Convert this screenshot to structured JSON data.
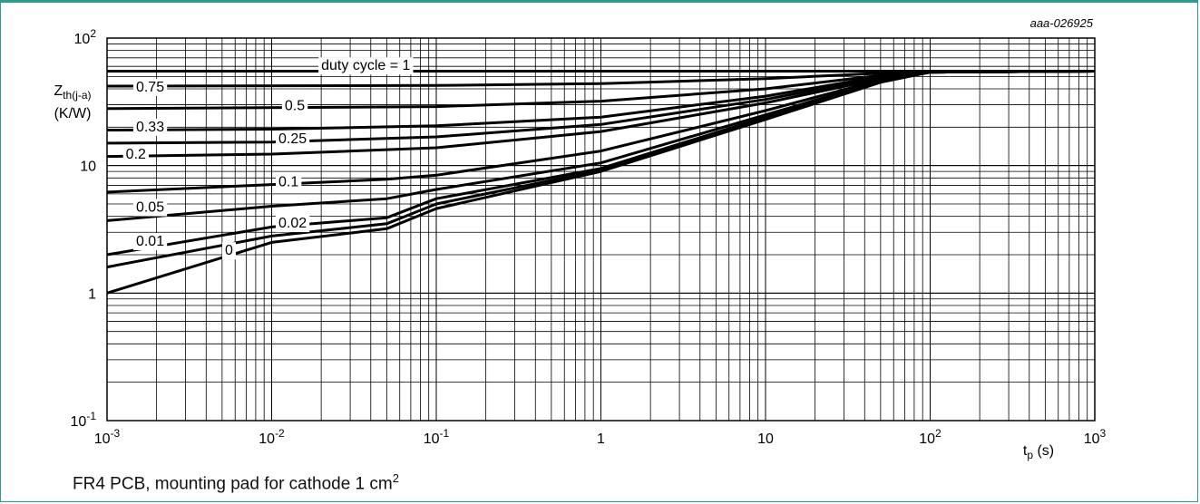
{
  "figure_id": "aaa-026925",
  "caption": {
    "text": "FR4 PCB, mounting pad for cathode 1 cm",
    "superscript": "2"
  },
  "chart_data": {
    "type": "line",
    "title": "",
    "x_scale": "log",
    "y_scale": "log",
    "xlim": [
      0.001,
      1000
    ],
    "ylim": [
      0.1,
      100
    ],
    "grid": true,
    "xlabel": {
      "base": "t",
      "sub": "p",
      "unit": " (s)"
    },
    "ylabel": {
      "base": "Z",
      "sub": "th(j-a)",
      "unit": "(K/W)"
    },
    "x_ticks": [
      {
        "value": 0.001,
        "base": "10",
        "exp": "-3"
      },
      {
        "value": 0.01,
        "base": "10",
        "exp": "-2"
      },
      {
        "value": 0.1,
        "base": "10",
        "exp": "-1"
      },
      {
        "value": 1,
        "base": "1",
        "exp": ""
      },
      {
        "value": 10,
        "base": "10",
        "exp": ""
      },
      {
        "value": 100,
        "base": "10",
        "exp": "2"
      },
      {
        "value": 1000,
        "base": "10",
        "exp": "3"
      }
    ],
    "y_ticks": [
      {
        "value": 0.1,
        "base": "10",
        "exp": "-1"
      },
      {
        "value": 1,
        "base": "1",
        "exp": ""
      },
      {
        "value": 10,
        "base": "10",
        "exp": ""
      },
      {
        "value": 100,
        "base": "10",
        "exp": "2"
      }
    ],
    "series": [
      {
        "name": "duty cycle = 1",
        "points": [
          [
            0.001,
            55
          ],
          [
            1000,
            55
          ]
        ]
      },
      {
        "name": "0.75",
        "points": [
          [
            0.001,
            42
          ],
          [
            0.1,
            42.5
          ],
          [
            1,
            44
          ],
          [
            10,
            48
          ],
          [
            50,
            53
          ],
          [
            100,
            54.5
          ],
          [
            1000,
            55
          ]
        ]
      },
      {
        "name": "0.5",
        "points": [
          [
            0.001,
            28
          ],
          [
            0.1,
            29
          ],
          [
            1,
            32
          ],
          [
            10,
            40
          ],
          [
            50,
            51
          ],
          [
            100,
            54
          ],
          [
            1000,
            55
          ]
        ]
      },
      {
        "name": "0.33",
        "points": [
          [
            0.001,
            19
          ],
          [
            0.01,
            19.3
          ],
          [
            0.1,
            20.5
          ],
          [
            1,
            24
          ],
          [
            10,
            35
          ],
          [
            50,
            50
          ],
          [
            100,
            54
          ],
          [
            1000,
            55
          ]
        ]
      },
      {
        "name": "0.25",
        "points": [
          [
            0.001,
            15
          ],
          [
            0.01,
            15.3
          ],
          [
            0.1,
            16.8
          ],
          [
            1,
            21
          ],
          [
            10,
            33
          ],
          [
            50,
            49
          ],
          [
            100,
            54
          ],
          [
            1000,
            55
          ]
        ]
      },
      {
        "name": "0.2",
        "points": [
          [
            0.001,
            11.8
          ],
          [
            0.01,
            12.3
          ],
          [
            0.1,
            13.8
          ],
          [
            1,
            18.5
          ],
          [
            10,
            31
          ],
          [
            50,
            48
          ],
          [
            100,
            54
          ],
          [
            1000,
            55
          ]
        ]
      },
      {
        "name": "0.1",
        "points": [
          [
            0.001,
            6.2
          ],
          [
            0.01,
            7.1
          ],
          [
            0.05,
            7.8
          ],
          [
            0.1,
            8.4
          ],
          [
            1,
            13
          ],
          [
            10,
            27
          ],
          [
            50,
            47
          ],
          [
            100,
            54
          ],
          [
            1000,
            55
          ]
        ]
      },
      {
        "name": "0.05",
        "points": [
          [
            0.001,
            3.7
          ],
          [
            0.01,
            4.8
          ],
          [
            0.05,
            5.5
          ],
          [
            0.1,
            6.5
          ],
          [
            1,
            10.5
          ],
          [
            10,
            25
          ],
          [
            50,
            46
          ],
          [
            100,
            54
          ],
          [
            1000,
            55
          ]
        ]
      },
      {
        "name": "0.02",
        "points": [
          [
            0.001,
            2
          ],
          [
            0.01,
            3.3
          ],
          [
            0.05,
            3.9
          ],
          [
            0.1,
            5.5
          ],
          [
            1,
            9.5
          ],
          [
            10,
            24
          ],
          [
            50,
            46
          ],
          [
            100,
            54
          ],
          [
            1000,
            55
          ]
        ]
      },
      {
        "name": "0.01",
        "points": [
          [
            0.001,
            1.6
          ],
          [
            0.01,
            2.8
          ],
          [
            0.05,
            3.5
          ],
          [
            0.1,
            5
          ],
          [
            1,
            9.2
          ],
          [
            10,
            23.5
          ],
          [
            50,
            46
          ],
          [
            100,
            54
          ],
          [
            1000,
            55
          ]
        ]
      },
      {
        "name": "0",
        "points": [
          [
            0.001,
            1
          ],
          [
            0.01,
            2.5
          ],
          [
            0.05,
            3.2
          ],
          [
            0.1,
            4.6
          ],
          [
            1,
            9
          ],
          [
            10,
            23
          ],
          [
            50,
            45
          ],
          [
            100,
            54
          ],
          [
            1000,
            55
          ]
        ]
      }
    ],
    "series_labels": [
      {
        "text": "duty cycle = 1",
        "x": 0.02,
        "y": 62
      },
      {
        "text": "0.75",
        "x": 0.0015,
        "y": 42
      },
      {
        "text": "0.5",
        "x": 0.012,
        "y": 30
      },
      {
        "text": "0.33",
        "x": 0.0015,
        "y": 20.5
      },
      {
        "text": "0.25",
        "x": 0.011,
        "y": 16.5
      },
      {
        "text": "0.2",
        "x": 0.0013,
        "y": 12.5
      },
      {
        "text": "0.1",
        "x": 0.011,
        "y": 7.6
      },
      {
        "text": "0.05",
        "x": 0.0015,
        "y": 4.8
      },
      {
        "text": "0.02",
        "x": 0.011,
        "y": 3.6
      },
      {
        "text": "0.01",
        "x": 0.0015,
        "y": 2.6
      },
      {
        "text": "0",
        "x": 0.0052,
        "y": 2.2
      }
    ]
  }
}
